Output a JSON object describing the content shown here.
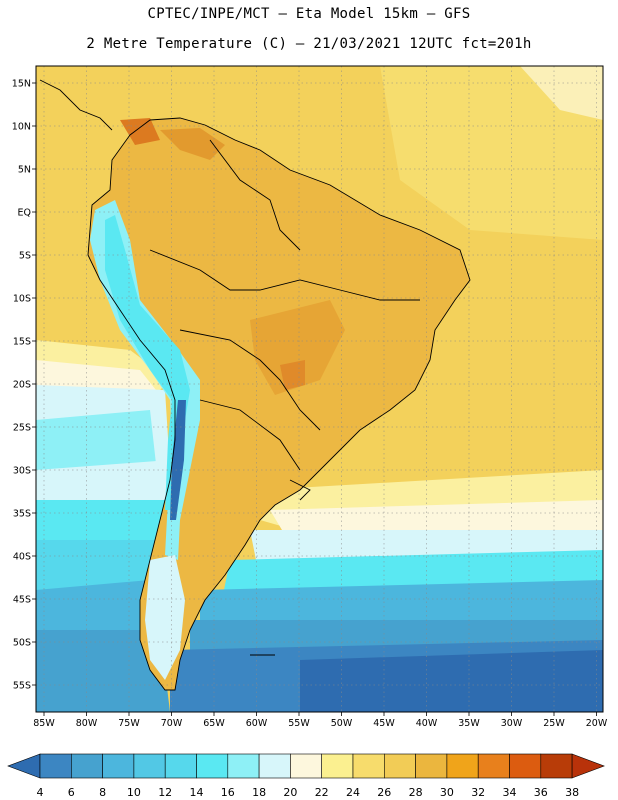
{
  "header": {
    "line1": "CPTEC/INPE/MCT –  Eta Model 15km – GFS",
    "line2": "2 Metre Temperature (C) – 21/03/2021 12UTC fct=201h"
  },
  "map": {
    "lat_labels": [
      "15N",
      "10N",
      "5N",
      "EQ",
      "5S",
      "10S",
      "15S",
      "20S",
      "25S",
      "30S",
      "35S",
      "40S",
      "45S",
      "50S",
      "55S"
    ],
    "lon_labels": [
      "85W",
      "80W",
      "75W",
      "70W",
      "65W",
      "60W",
      "55W",
      "50W",
      "45W",
      "40W",
      "35W",
      "30W",
      "25W",
      "20W"
    ],
    "lat_values": [
      15,
      10,
      5,
      0,
      -5,
      -10,
      -15,
      -20,
      -25,
      -30,
      -35,
      -40,
      -45,
      -50,
      -55
    ],
    "lon_values": [
      -85,
      -80,
      -75,
      -70,
      -65,
      -60,
      -55,
      -50,
      -45,
      -40,
      -35,
      -30,
      -25,
      -20
    ]
  },
  "colorbar": {
    "labels": [
      "4",
      "6",
      "8",
      "10",
      "12",
      "14",
      "16",
      "18",
      "20",
      "22",
      "24",
      "26",
      "28",
      "30",
      "32",
      "34",
      "36",
      "38"
    ],
    "colors": [
      "#2e6cb0",
      "#3c86c2",
      "#46a2cf",
      "#4cb6dd",
      "#52c8e5",
      "#56d8ec",
      "#5ae8f2",
      "#8ef0f6",
      "#d7f6fa",
      "#fdf7dd",
      "#fbf090",
      "#f7dc6c",
      "#f2cc56",
      "#ebb63e",
      "#f0a41a",
      "#e8801c",
      "#dc5c10",
      "#b83c08",
      "#b8320a"
    ]
  },
  "colors": {
    "ocean_north": "#f3d15b",
    "land": "#ecb843",
    "hot": "#e29a2e",
    "cold_sea": "#2f6fb2"
  }
}
